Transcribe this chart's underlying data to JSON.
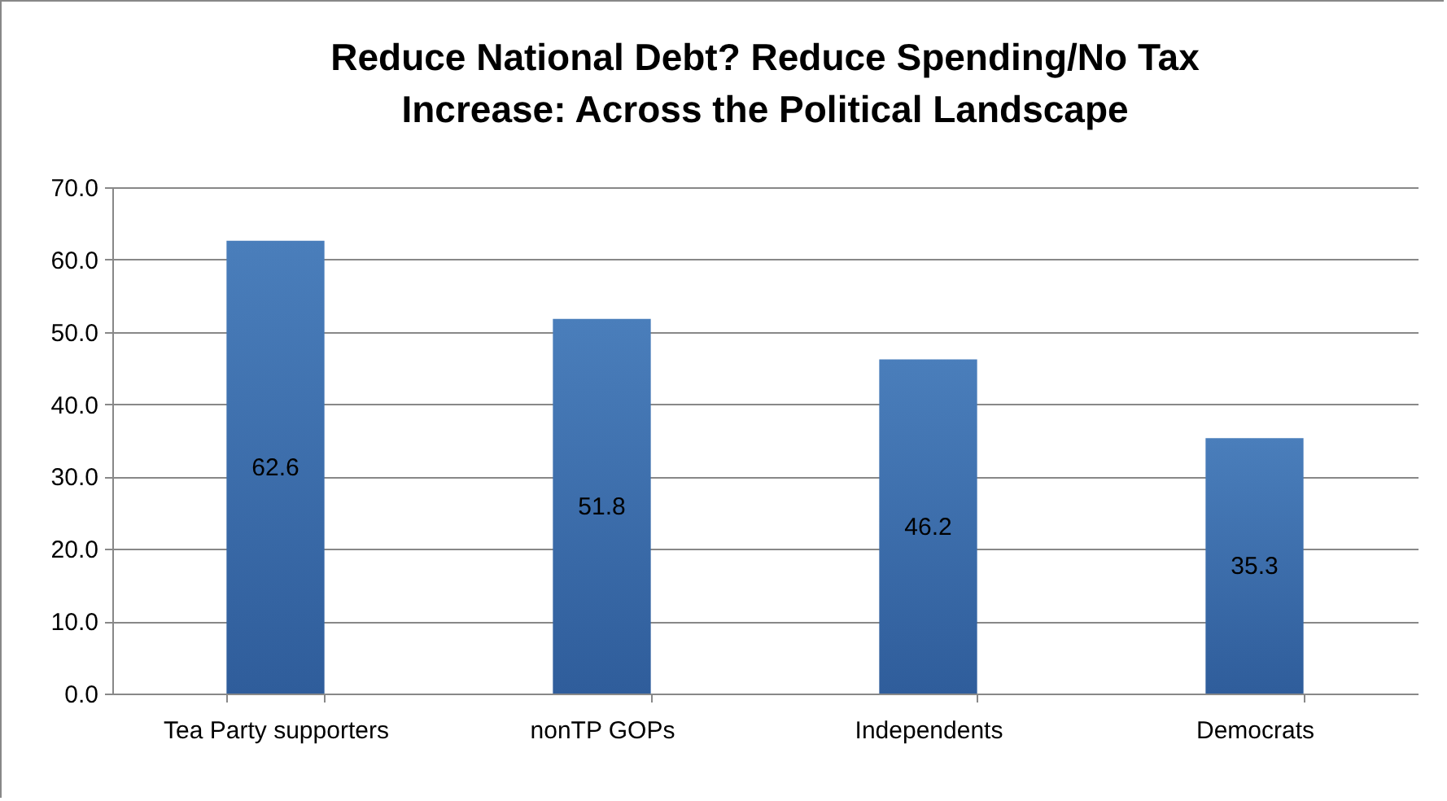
{
  "chart_data": {
    "type": "bar",
    "title": "Reduce National Debt? Reduce Spending/No Tax Increase: Across the Political Landscape",
    "categories": [
      "Tea Party supporters",
      "nonTP GOPs",
      "Independents",
      "Democrats"
    ],
    "values": [
      62.6,
      51.8,
      46.2,
      35.3
    ],
    "color": "#4a7ebb",
    "ylim": [
      0,
      70
    ],
    "yticks": [
      {
        "value": 0,
        "label": "0.0"
      },
      {
        "value": 10,
        "label": "10.0"
      },
      {
        "value": 20,
        "label": "20.0"
      },
      {
        "value": 30,
        "label": "30.0"
      },
      {
        "value": 40,
        "label": "40.0"
      },
      {
        "value": 50,
        "label": "50.0"
      },
      {
        "value": 60,
        "label": "60.0"
      },
      {
        "value": 70,
        "label": "70.0"
      }
    ],
    "grid": "y",
    "data_labels": true
  }
}
